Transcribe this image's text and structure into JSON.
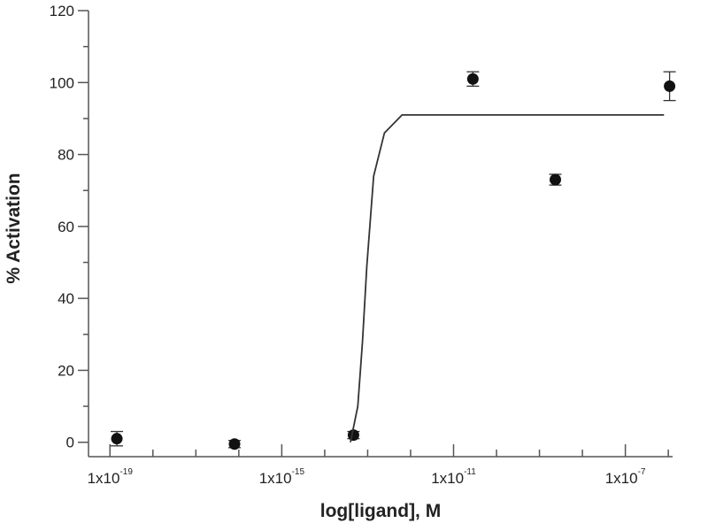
{
  "chart_data": {
    "type": "scatter",
    "x_label": "log[ligand], M",
    "y_label": "% Activation",
    "xlim": [
      -19.5,
      -5.9
    ],
    "ylim": [
      -4,
      120
    ],
    "xticks": [
      {
        "value": -19,
        "label": "1x10"
      },
      {
        "value": -15,
        "label": "1x10"
      },
      {
        "value": -11,
        "label": "1x10"
      },
      {
        "value": -7,
        "label": "1x10"
      }
    ],
    "xminor": [
      -18,
      -17,
      -16,
      -14,
      -13,
      -12,
      -10,
      -9,
      -8,
      -6
    ],
    "yticks": [
      0,
      20,
      40,
      60,
      80,
      100,
      120
    ],
    "yminor": [
      10,
      30,
      50,
      70,
      90,
      110
    ],
    "color": "#111111",
    "series": [
      {
        "x": [
          -18.84,
          -16.1,
          -13.33,
          -10.55,
          -8.63,
          -5.97
        ],
        "values": [
          1,
          -0.5,
          2,
          101,
          73,
          99
        ],
        "errors": [
          2,
          1,
          1,
          2,
          1.5,
          4
        ]
      }
    ],
    "curve": {
      "x": [
        -13.4,
        -13.23,
        -13.12,
        -13.02,
        -12.86,
        -12.61,
        -12.2,
        -6.1
      ],
      "values": [
        0,
        10,
        28,
        49,
        74,
        86,
        91,
        91
      ]
    }
  }
}
